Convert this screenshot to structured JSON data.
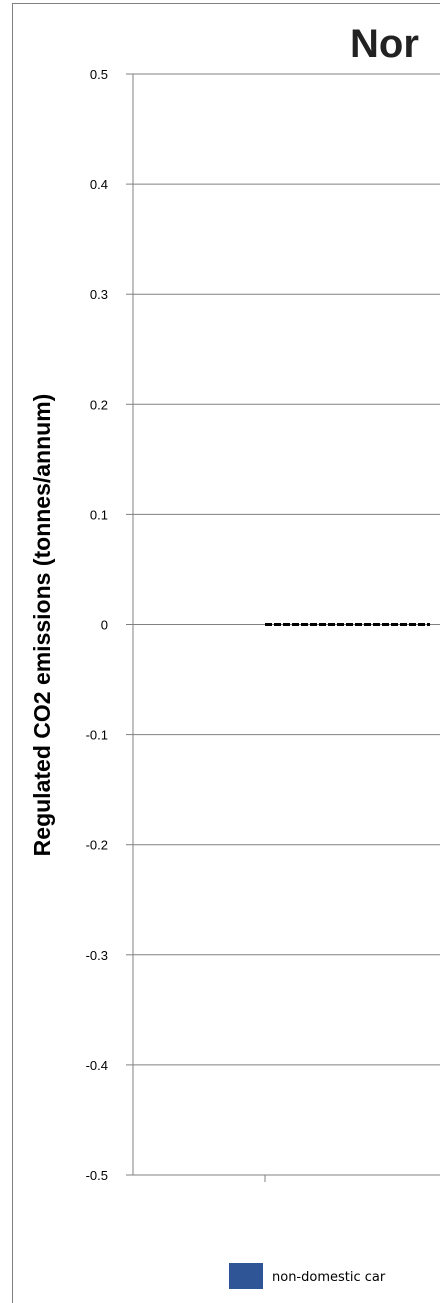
{
  "chart_data": {
    "type": "bar",
    "title": "Nor",
    "ylabel": "Regulated CO2 emissions (tonnes/annum)",
    "xlabel": "",
    "ylim": [
      -0.5,
      0.5
    ],
    "yticks": [
      0.5,
      0.4,
      0.3,
      0.2,
      0.1,
      0,
      -0.1,
      -0.2,
      -0.3,
      -0.4,
      -0.5
    ],
    "grid": true,
    "categories": [
      ""
    ],
    "series": [
      {
        "name": "non-domestic car",
        "values": [
          0
        ]
      }
    ],
    "reference_line": {
      "value": 0,
      "style": "dashed",
      "color": "#000000"
    },
    "legend": {
      "placement": "bottom",
      "swatch_color": "#2f5597"
    }
  }
}
